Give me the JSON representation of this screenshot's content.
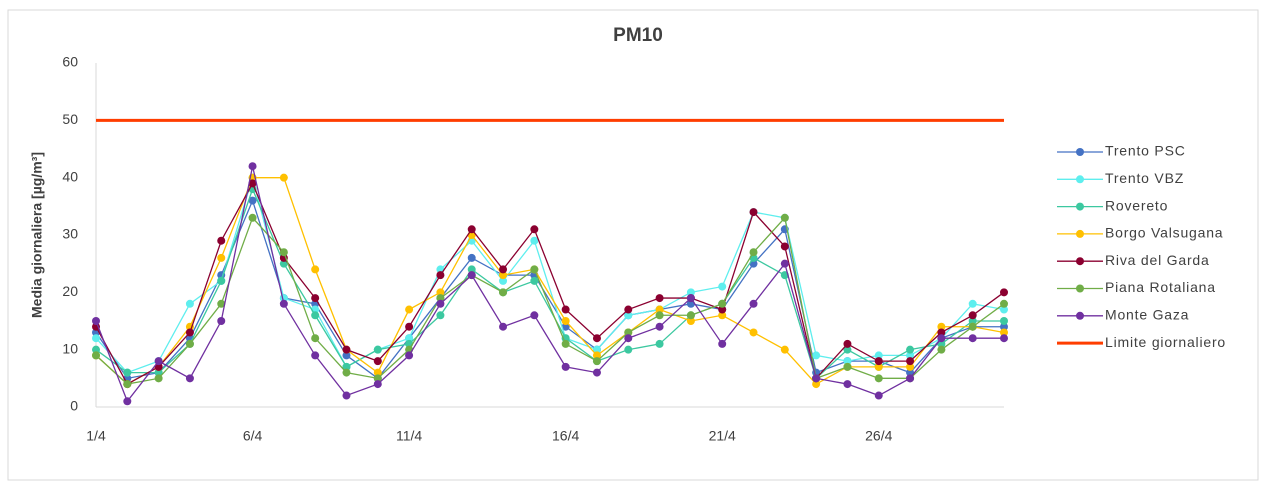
{
  "chart_data": {
    "type": "line",
    "title": "PM10",
    "ylabel": "Media giornaliera [µg/m³]",
    "categories": [
      "1/4",
      null,
      null,
      null,
      null,
      "6/4",
      null,
      null,
      null,
      null,
      "11/4",
      null,
      null,
      null,
      null,
      "16/4",
      null,
      null,
      null,
      null,
      "21/4",
      null,
      null,
      null,
      null,
      "26/4",
      null,
      null,
      null,
      null
    ],
    "ylim": [
      0,
      60
    ],
    "yticks": [
      0,
      10,
      20,
      30,
      40,
      50,
      60
    ],
    "grid": false,
    "legend": "right",
    "series": [
      {
        "name": "Trento PSC",
        "color": "#4472c4",
        "markers": true,
        "values": [
          13,
          5,
          6,
          12,
          23,
          36,
          19,
          18,
          9,
          5,
          12,
          19,
          26,
          23,
          23,
          14,
          10,
          16,
          17,
          18,
          17,
          25,
          31,
          6,
          8,
          8,
          6,
          12,
          14,
          14
        ]
      },
      {
        "name": "Trento VBZ",
        "color": "#5eeeee",
        "markers": true,
        "values": [
          12,
          6,
          8,
          18,
          22,
          40,
          19,
          17,
          7,
          10,
          12,
          24,
          29,
          22,
          29,
          12,
          10,
          16,
          17,
          20,
          21,
          34,
          33,
          9,
          8,
          9,
          9,
          12,
          18,
          17
        ]
      },
      {
        "name": "Rovereto",
        "color": "#3cc8a0",
        "markers": true,
        "values": [
          10,
          6,
          6,
          11,
          22,
          38,
          25,
          16,
          7,
          10,
          11,
          16,
          24,
          20,
          22,
          12,
          8,
          10,
          11,
          16,
          18,
          26,
          23,
          5,
          10,
          7,
          10,
          11,
          15,
          15
        ]
      },
      {
        "name": "Borgo Valsugana",
        "color": "#ffc000",
        "markers": true,
        "values": [
          9,
          4,
          7,
          14,
          26,
          40,
          40,
          24,
          10,
          6,
          17,
          20,
          30,
          23,
          24,
          15,
          9,
          13,
          17,
          15,
          16,
          13,
          10,
          4,
          7,
          7,
          7,
          14,
          14,
          13
        ]
      },
      {
        "name": "Riva del Garda",
        "color": "#8b0030",
        "markers": true,
        "values": [
          14,
          4,
          7,
          13,
          29,
          39,
          26,
          19,
          10,
          8,
          14,
          23,
          31,
          24,
          31,
          17,
          12,
          17,
          19,
          19,
          17,
          34,
          28,
          5,
          11,
          8,
          8,
          13,
          16,
          20
        ]
      },
      {
        "name": "Piana Rotaliana",
        "color": "#70ad47",
        "markers": true,
        "values": [
          9,
          4,
          5,
          11,
          18,
          33,
          27,
          12,
          6,
          5,
          10,
          19,
          23,
          20,
          24,
          11,
          8,
          13,
          16,
          16,
          18,
          27,
          33,
          5,
          7,
          5,
          5,
          10,
          14,
          18
        ]
      },
      {
        "name": "Monte Gaza",
        "color": "#7030a0",
        "markers": true,
        "values": [
          15,
          1,
          8,
          5,
          15,
          42,
          18,
          9,
          2,
          4,
          9,
          18,
          23,
          14,
          16,
          7,
          6,
          12,
          14,
          19,
          11,
          18,
          25,
          5,
          4,
          2,
          5,
          12,
          12,
          12
        ]
      },
      {
        "name": "Limite giornaliero",
        "color": "#ff3d00",
        "markers": false,
        "values": [
          50,
          50,
          50,
          50,
          50,
          50,
          50,
          50,
          50,
          50,
          50,
          50,
          50,
          50,
          50,
          50,
          50,
          50,
          50,
          50,
          50,
          50,
          50,
          50,
          50,
          50,
          50,
          50,
          50,
          50
        ]
      }
    ]
  }
}
